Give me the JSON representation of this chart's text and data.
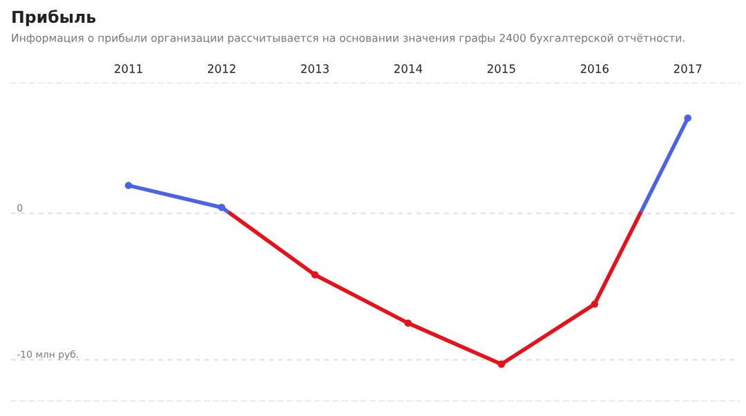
{
  "chart_data": {
    "type": "line",
    "title": "Прибыль",
    "subtitle": "Информация о прибыли организации рассчитывается на основании значения графы 2400 бухгалтерской отчётности.",
    "series": [
      {
        "color": "#4a63e8",
        "marker": "none",
        "x": [
          2011,
          2012,
          2012.09,
          2014,
          2016.49,
          2017
        ],
        "values": [
          1.9,
          0.4,
          0,
          null,
          0,
          6.5
        ]
      },
      {
        "color": "#e8101a",
        "marker": "none",
        "x": [
          2012.09,
          2013,
          2014,
          2015,
          2016,
          2016.49
        ],
        "values": [
          0,
          -4.2,
          -7.5,
          -10.3,
          -6.2,
          0
        ]
      },
      {
        "type": "scatter",
        "marker": "circle",
        "colors": [
          "#4a63e8",
          "#4a63e8",
          "#e8101a",
          "#e8101a",
          "#e8101a",
          "#e8101a",
          "#4a63e8"
        ],
        "x": [
          2011,
          2012,
          2013,
          2014,
          2015,
          2016,
          2017
        ],
        "values": [
          1.9,
          0.4,
          -4.2,
          -7.5,
          -10.3,
          -6.2,
          6.5
        ]
      }
    ],
    "xlim": [
      2009.74,
      2017.55
    ],
    "xticks": [
      2011,
      2012,
      2013,
      2014,
      2015,
      2016,
      2017
    ],
    "ylim": [
      -12.8,
      8.9
    ],
    "yticks": [
      0,
      {
        "value": -10,
        "label": "-10 млн руб."
      }
    ],
    "grid": "y",
    "line_style": "solid"
  }
}
